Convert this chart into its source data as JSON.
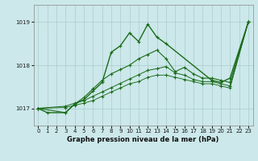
{
  "title": "Graphe pression niveau de la mer (hPa)",
  "bg_color": "#cce8ea",
  "grid_color": "#aacccc",
  "line_color": "#1a6b1a",
  "xlim": [
    -0.5,
    23.5
  ],
  "ylim": [
    1016.6,
    1019.4
  ],
  "yticks": [
    1017,
    1018,
    1019
  ],
  "xticks": [
    0,
    1,
    2,
    3,
    4,
    5,
    6,
    7,
    8,
    9,
    10,
    11,
    12,
    13,
    14,
    15,
    16,
    17,
    18,
    19,
    20,
    21,
    22,
    23
  ],
  "series": [
    [
      1017.0,
      1016.9,
      null,
      1016.9,
      1017.1,
      1017.2,
      1017.4,
      1017.6,
      1018.3,
      1018.45,
      1018.75,
      1018.55,
      1018.95,
      1018.65,
      1018.5,
      null,
      null,
      null,
      null,
      1017.65,
      1017.6,
      1017.7,
      null,
      1019.0
    ],
    [
      1017.0,
      null,
      null,
      1016.9,
      1017.1,
      1017.25,
      1017.45,
      1017.65,
      1017.8,
      1017.9,
      1018.0,
      1018.15,
      1018.25,
      1018.35,
      1018.15,
      1017.85,
      1017.95,
      1017.8,
      1017.7,
      1017.7,
      1017.65,
      1017.6,
      null,
      1019.0
    ],
    [
      1017.0,
      null,
      null,
      1017.05,
      1017.12,
      1017.18,
      1017.28,
      1017.38,
      1017.48,
      1017.58,
      1017.68,
      1017.78,
      1017.88,
      1017.92,
      1017.97,
      1017.82,
      1017.77,
      1017.67,
      1017.62,
      1017.62,
      1017.57,
      1017.52,
      null,
      1019.0
    ],
    [
      1017.0,
      null,
      null,
      1017.02,
      1017.07,
      1017.12,
      1017.18,
      1017.28,
      1017.38,
      1017.47,
      1017.57,
      1017.62,
      1017.72,
      1017.77,
      1017.77,
      1017.72,
      1017.67,
      1017.62,
      1017.57,
      1017.57,
      1017.52,
      1017.47,
      null,
      1019.0
    ]
  ]
}
